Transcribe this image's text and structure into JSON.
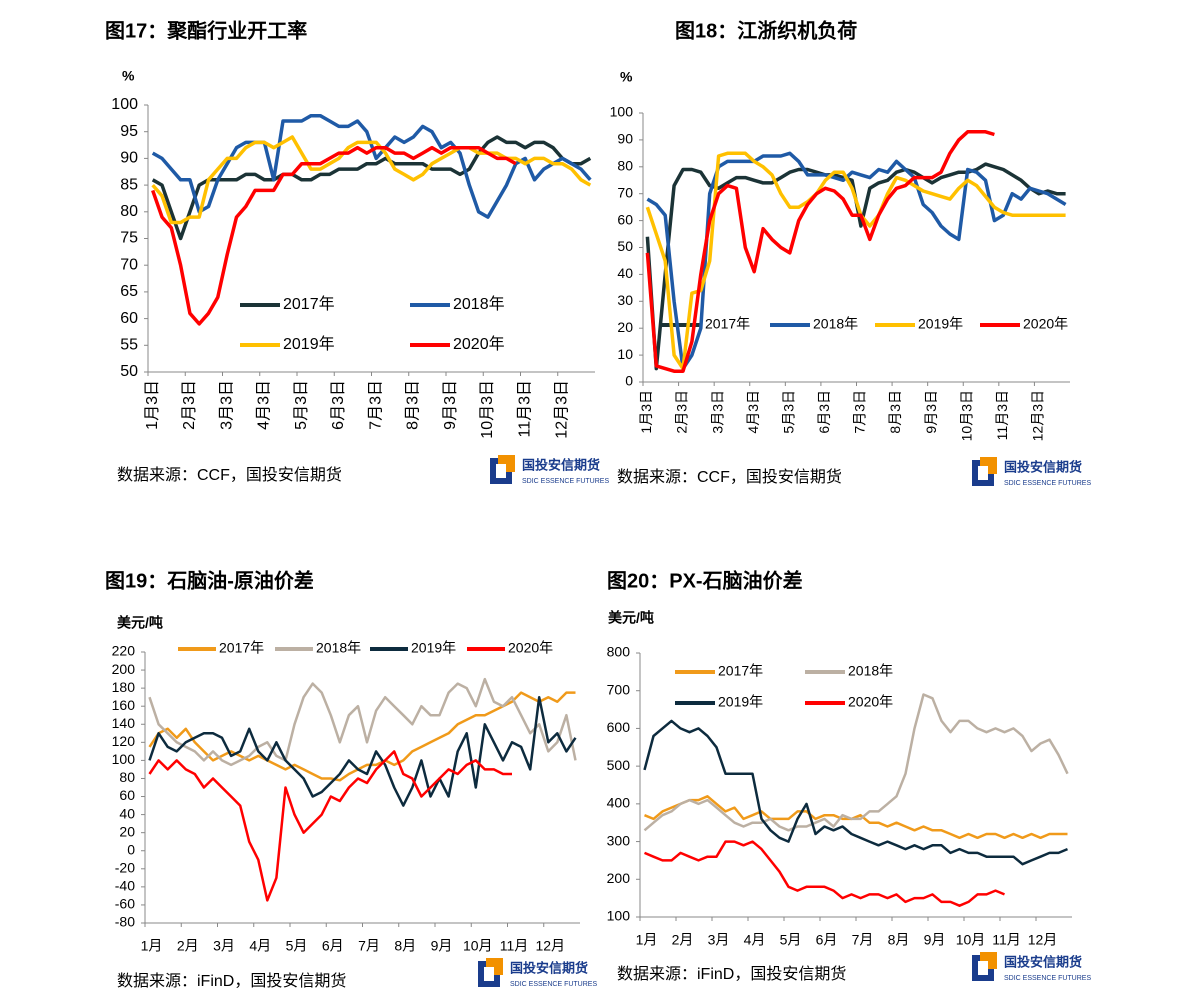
{
  "chart_data": [
    {
      "type": "line",
      "title": "图17：聚酯行业开工率",
      "y_label": "%",
      "categories": [
        "1月3日",
        null,
        null,
        null,
        "2月3日",
        null,
        null,
        null,
        "3月3日",
        null,
        null,
        null,
        "4月3日",
        null,
        null,
        null,
        "5月3日",
        null,
        null,
        null,
        "6月3日",
        null,
        null,
        null,
        "7月3日",
        null,
        null,
        null,
        "8月3日",
        null,
        null,
        null,
        "9月3日",
        null,
        null,
        null,
        "10月3日",
        null,
        null,
        null,
        "11月3日",
        null,
        null,
        null,
        "12月3日",
        null,
        null,
        null
      ],
      "series": [
        {
          "name": "2017年",
          "color": "#1b3336",
          "values": [
            86,
            85,
            80,
            75,
            80,
            85,
            86,
            86,
            86,
            86,
            87,
            87,
            86,
            86,
            87,
            87,
            86,
            86,
            87,
            87,
            88,
            88,
            88,
            89,
            89,
            90,
            89,
            89,
            89,
            89,
            88,
            88,
            88,
            87,
            88,
            91,
            93,
            94,
            93,
            93,
            92,
            93,
            93,
            92,
            90,
            89,
            89,
            90
          ]
        },
        {
          "name": "2018年",
          "color": "#1f5aa6",
          "values": [
            91,
            90,
            88,
            86,
            86,
            80,
            81,
            86,
            89,
            92,
            93,
            93,
            93,
            86,
            97,
            97,
            97,
            98,
            98,
            97,
            96,
            96,
            97,
            95,
            90,
            92,
            94,
            93,
            94,
            96,
            95,
            92,
            93,
            91,
            85,
            80,
            79,
            82,
            85,
            89,
            90,
            86,
            88,
            89,
            90,
            89,
            88,
            86
          ]
        },
        {
          "name": "2019年",
          "color": "#ffc000",
          "values": [
            85,
            83,
            78,
            78,
            79,
            79,
            86,
            88,
            90,
            90,
            92,
            93,
            93,
            92,
            93,
            94,
            91,
            88,
            88,
            89,
            90,
            92,
            93,
            93,
            93,
            91,
            88,
            87,
            86,
            87,
            89,
            90,
            91,
            92,
            92,
            91,
            91,
            91,
            90,
            90,
            89,
            90,
            90,
            89,
            89,
            88,
            86,
            85
          ]
        },
        {
          "name": "2020年",
          "color": "#ff0000",
          "values": [
            84,
            79,
            77,
            70,
            61,
            59,
            61,
            64,
            72,
            79,
            81,
            84,
            84,
            84,
            87,
            87,
            89,
            89,
            89,
            90,
            91,
            91,
            92,
            91,
            92,
            92,
            91,
            91,
            90,
            91,
            92,
            91,
            92,
            92,
            92,
            92,
            91,
            90,
            90,
            89,
            null,
            null,
            null,
            null,
            null,
            null,
            null,
            null
          ]
        }
      ],
      "ylim": [
        50,
        100
      ],
      "yticks": [
        50,
        55,
        60,
        65,
        70,
        75,
        80,
        85,
        90,
        95,
        100
      ],
      "source": "数据来源：CCF，国投安信期货",
      "logo": "国投安信期货",
      "logo_sub": "SDIC ESSENCE FUTURES"
    },
    {
      "type": "line",
      "title": "图18：江浙织机负荷",
      "y_label": "%",
      "categories": [
        "1月3日",
        null,
        null,
        null,
        "2月3日",
        null,
        null,
        null,
        "3月3日",
        null,
        null,
        null,
        "4月3日",
        null,
        null,
        null,
        "5月3日",
        null,
        null,
        null,
        "6月3日",
        null,
        null,
        null,
        "7月3日",
        null,
        null,
        null,
        "8月3日",
        null,
        null,
        null,
        "9月3日",
        null,
        null,
        null,
        "10月3日",
        null,
        null,
        null,
        "11月3日",
        null,
        null,
        null,
        "12月3日",
        null,
        null,
        null
      ],
      "series": [
        {
          "name": "2017年",
          "color": "#1b3336",
          "values": [
            54,
            5,
            40,
            73,
            79,
            79,
            78,
            73,
            72,
            74,
            76,
            76,
            75,
            74,
            74,
            76,
            78,
            79,
            79,
            78,
            77,
            77,
            76,
            75,
            58,
            72,
            74,
            75,
            78,
            79,
            78,
            76,
            74,
            76,
            77,
            78,
            78,
            79,
            81,
            80,
            79,
            77,
            75,
            72,
            70,
            71,
            70,
            70
          ]
        },
        {
          "name": "2018年",
          "color": "#1f5aa6",
          "values": [
            68,
            66,
            62,
            30,
            5,
            10,
            20,
            70,
            80,
            82,
            82,
            82,
            82,
            84,
            84,
            84,
            85,
            82,
            77,
            77,
            77,
            76,
            75,
            78,
            77,
            76,
            79,
            78,
            82,
            79,
            76,
            66,
            63,
            58,
            55,
            53,
            79,
            78,
            75,
            60,
            62,
            70,
            68,
            72,
            71,
            70,
            68,
            66
          ]
        },
        {
          "name": "2019年",
          "color": "#ffc000",
          "values": [
            65,
            55,
            45,
            10,
            5,
            33,
            34,
            45,
            84,
            85,
            85,
            85,
            82,
            80,
            77,
            70,
            65,
            65,
            67,
            70,
            75,
            78,
            78,
            72,
            62,
            58,
            62,
            70,
            76,
            75,
            73,
            71,
            70,
            69,
            68,
            72,
            75,
            73,
            69,
            65,
            63,
            62,
            62,
            62,
            62,
            62,
            62,
            62
          ]
        },
        {
          "name": "2020年",
          "color": "#ff0000",
          "values": [
            48,
            6,
            5,
            4,
            4,
            15,
            40,
            60,
            70,
            73,
            72,
            50,
            41,
            57,
            53,
            50,
            48,
            60,
            66,
            70,
            72,
            71,
            68,
            62,
            62,
            53,
            62,
            68,
            72,
            73,
            76,
            76,
            76,
            78,
            85,
            90,
            93,
            93,
            93,
            92,
            null,
            null,
            null,
            null,
            null,
            null,
            null,
            null
          ]
        }
      ],
      "ylim": [
        0,
        100
      ],
      "yticks": [
        0,
        10,
        20,
        30,
        40,
        50,
        60,
        70,
        80,
        90,
        100
      ],
      "source": "数据来源：CCF，国投安信期货",
      "logo": "国投安信期货",
      "logo_sub": "SDIC ESSENCE FUTURES"
    },
    {
      "type": "line",
      "title": "图19：石脑油-原油价差",
      "y_label": "美元/吨",
      "categories": [
        "1月",
        null,
        null,
        null,
        "2月",
        null,
        null,
        null,
        "3月",
        null,
        null,
        null,
        "4月",
        null,
        null,
        null,
        "5月",
        null,
        null,
        null,
        "6月",
        null,
        null,
        null,
        "7月",
        null,
        null,
        null,
        "8月",
        null,
        null,
        null,
        "9月",
        null,
        null,
        null,
        "10月",
        null,
        null,
        null,
        "11月",
        null,
        null,
        null,
        "12月",
        null,
        null,
        null
      ],
      "series": [
        {
          "name": "2017年",
          "color": "#f09a1a",
          "values": [
            115,
            130,
            135,
            125,
            135,
            120,
            110,
            100,
            105,
            110,
            105,
            100,
            105,
            100,
            95,
            90,
            95,
            90,
            85,
            80,
            80,
            78,
            85,
            90,
            95,
            95,
            100,
            95,
            100,
            110,
            115,
            120,
            125,
            130,
            140,
            145,
            150,
            150,
            155,
            160,
            165,
            175,
            170,
            165,
            170,
            165,
            175,
            175
          ]
        },
        {
          "name": "2018年",
          "color": "#bcb0a3",
          "values": [
            170,
            140,
            130,
            120,
            115,
            110,
            100,
            110,
            100,
            95,
            100,
            105,
            115,
            120,
            105,
            100,
            140,
            170,
            185,
            175,
            150,
            120,
            150,
            160,
            120,
            155,
            170,
            160,
            150,
            140,
            160,
            150,
            150,
            175,
            185,
            180,
            160,
            190,
            165,
            160,
            170,
            150,
            130,
            140,
            110,
            120,
            150,
            100
          ]
        },
        {
          "name": "2019年",
          "color": "#0d2b3e",
          "values": [
            100,
            130,
            115,
            110,
            120,
            125,
            130,
            130,
            125,
            105,
            110,
            135,
            110,
            100,
            120,
            100,
            90,
            80,
            60,
            65,
            75,
            85,
            100,
            90,
            85,
            110,
            95,
            70,
            50,
            70,
            100,
            60,
            80,
            60,
            110,
            130,
            70,
            140,
            120,
            100,
            120,
            115,
            90,
            170,
            120,
            130,
            110,
            125
          ]
        },
        {
          "name": "2020年",
          "color": "#ff0000",
          "values": [
            85,
            100,
            90,
            100,
            90,
            85,
            70,
            80,
            70,
            60,
            50,
            10,
            -10,
            -55,
            -30,
            70,
            40,
            20,
            30,
            40,
            60,
            55,
            70,
            80,
            75,
            90,
            100,
            110,
            85,
            80,
            60,
            70,
            80,
            90,
            85,
            95,
            100,
            90,
            90,
            85,
            85,
            null,
            null,
            null,
            null,
            null,
            null,
            null
          ]
        }
      ],
      "ylim": [
        -80,
        220
      ],
      "yticks": [
        -80,
        -60,
        -40,
        -20,
        0,
        20,
        40,
        60,
        80,
        100,
        120,
        140,
        160,
        180,
        200,
        220
      ],
      "source": "数据来源：iFinD，国投安信期货",
      "logo": "国投安信期货",
      "logo_sub": "SDIC ESSENCE FUTURES"
    },
    {
      "type": "line",
      "title": "图20：PX-石脑油价差",
      "y_label": "美元/吨",
      "categories": [
        "1月",
        null,
        null,
        null,
        "2月",
        null,
        null,
        null,
        "3月",
        null,
        null,
        null,
        "4月",
        null,
        null,
        null,
        "5月",
        null,
        null,
        null,
        "6月",
        null,
        null,
        null,
        "7月",
        null,
        null,
        null,
        "8月",
        null,
        null,
        null,
        "9月",
        null,
        null,
        null,
        "10月",
        null,
        null,
        null,
        "11月",
        null,
        null,
        null,
        "12月",
        null,
        null,
        null
      ],
      "series": [
        {
          "name": "2017年",
          "color": "#f09a1a",
          "values": [
            370,
            360,
            380,
            390,
            400,
            410,
            410,
            420,
            400,
            380,
            390,
            360,
            370,
            380,
            360,
            360,
            360,
            380,
            380,
            360,
            370,
            370,
            360,
            360,
            370,
            350,
            350,
            340,
            350,
            340,
            330,
            340,
            330,
            330,
            320,
            310,
            320,
            310,
            320,
            320,
            310,
            320,
            310,
            320,
            310,
            320,
            320,
            320
          ]
        },
        {
          "name": "2018年",
          "color": "#bcb0a3",
          "values": [
            330,
            350,
            370,
            380,
            400,
            410,
            400,
            410,
            390,
            370,
            350,
            340,
            350,
            350,
            360,
            340,
            330,
            340,
            340,
            350,
            360,
            340,
            370,
            360,
            360,
            380,
            380,
            400,
            420,
            480,
            600,
            690,
            680,
            620,
            590,
            620,
            620,
            600,
            590,
            600,
            590,
            600,
            580,
            540,
            560,
            570,
            530,
            480
          ]
        },
        {
          "name": "2019年",
          "color": "#0d2b3e",
          "values": [
            490,
            580,
            600,
            620,
            600,
            590,
            600,
            580,
            550,
            480,
            480,
            480,
            480,
            360,
            330,
            310,
            300,
            360,
            400,
            320,
            340,
            330,
            340,
            320,
            310,
            300,
            290,
            300,
            290,
            280,
            290,
            280,
            290,
            290,
            270,
            280,
            270,
            270,
            260,
            260,
            260,
            260,
            240,
            250,
            260,
            270,
            270,
            280
          ]
        },
        {
          "name": "2020年",
          "color": "#ff0000",
          "values": [
            270,
            260,
            250,
            250,
            270,
            260,
            250,
            260,
            260,
            300,
            300,
            290,
            300,
            280,
            250,
            220,
            180,
            170,
            180,
            180,
            180,
            170,
            150,
            160,
            150,
            160,
            160,
            150,
            160,
            140,
            150,
            150,
            160,
            140,
            140,
            130,
            140,
            160,
            160,
            170,
            160,
            null,
            null,
            null,
            null,
            null,
            null,
            null
          ]
        }
      ],
      "ylim": [
        100,
        800
      ],
      "yticks": [
        100,
        200,
        300,
        400,
        500,
        600,
        700,
        800
      ],
      "source": "数据来源：iFinD，国投安信期货",
      "logo": "国投安信期货",
      "logo_sub": "SDIC ESSENCE FUTURES"
    }
  ]
}
